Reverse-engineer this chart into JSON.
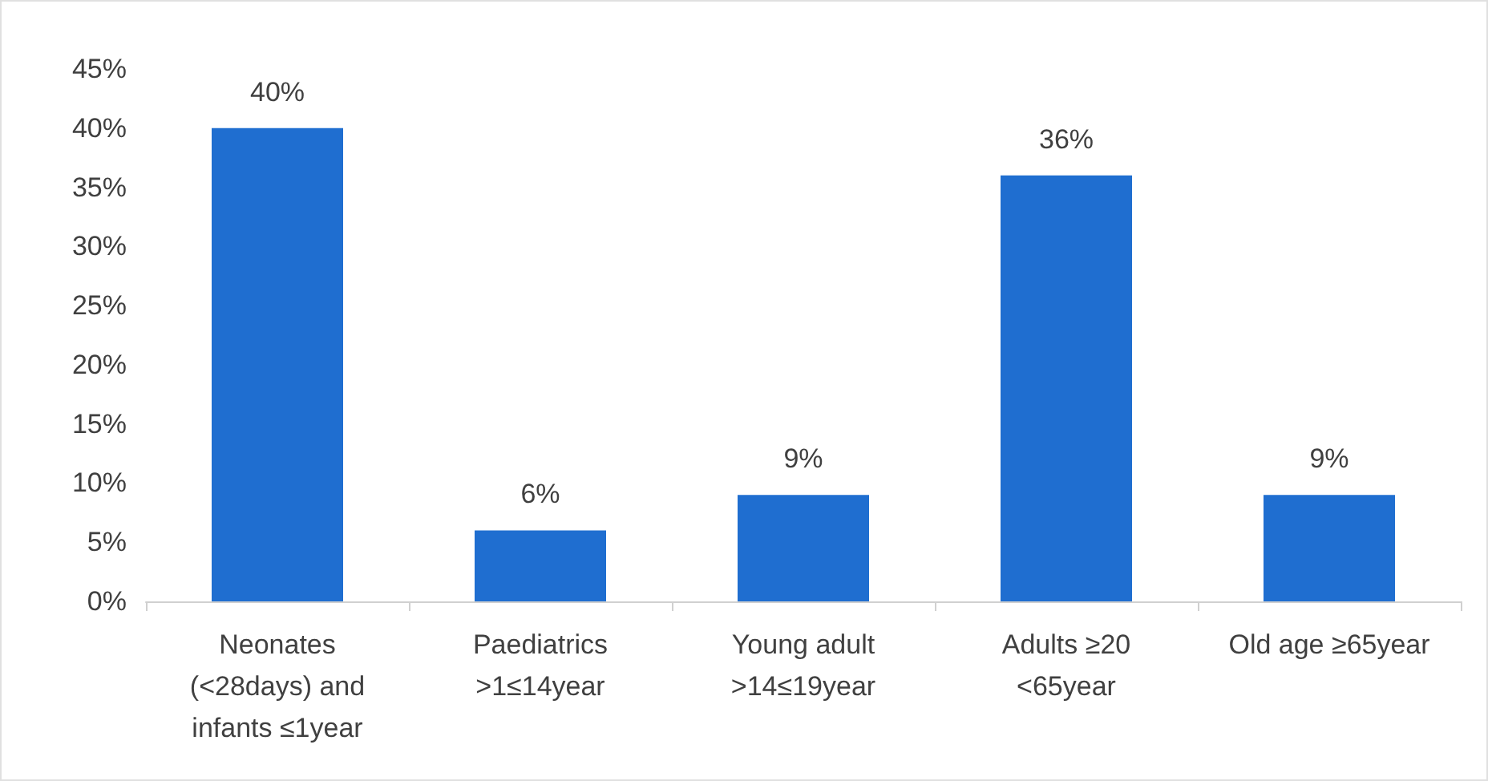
{
  "chart_data": {
    "type": "bar",
    "categories": [
      "Neonates\n(<28days) and\ninfants ≤1year",
      "Paediatrics\n>1≤14year",
      "Young adult\n>14≤19year",
      "Adults ≥20\n<65year",
      "Old age ≥65year"
    ],
    "values": [
      40,
      6,
      9,
      36,
      9
    ],
    "color": "#1f6ed0",
    "value_labels": [
      "40%",
      "6%",
      "9%",
      "36%",
      "9%"
    ],
    "ylim": [
      0,
      45
    ],
    "yticks": [
      {
        "value": 0,
        "label": "0%"
      },
      {
        "value": 5,
        "label": "5%"
      },
      {
        "value": 10,
        "label": "10%"
      },
      {
        "value": 15,
        "label": "15%"
      },
      {
        "value": 20,
        "label": "20%"
      },
      {
        "value": 25,
        "label": "25%"
      },
      {
        "value": 30,
        "label": "30%"
      },
      {
        "value": 35,
        "label": "35%"
      },
      {
        "value": 40,
        "label": "40%"
      },
      {
        "value": 45,
        "label": "45%"
      }
    ]
  }
}
